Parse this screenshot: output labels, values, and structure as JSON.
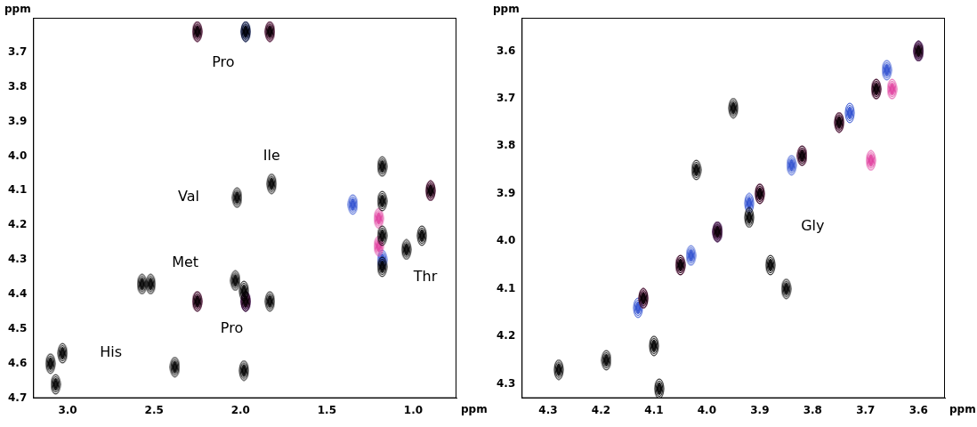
{
  "chart_data": [
    {
      "type": "scatter",
      "xlabel": "ppm",
      "ylabel": "ppm",
      "xlim": [
        3.2,
        0.75
      ],
      "ylim": [
        4.7,
        3.6
      ],
      "xticks": [
        {
          "value": 3,
          "label": "3.0"
        },
        2.5,
        {
          "value": 2,
          "label": "2.0"
        },
        1.5,
        {
          "value": 1,
          "label": "1.0"
        }
      ],
      "yticks": [
        3.7,
        3.8,
        3.9,
        {
          "value": 4,
          "label": "4.0"
        },
        4.1,
        4.2,
        4.3,
        4.4,
        4.5,
        4.6,
        4.7
      ],
      "grid": false,
      "series": [
        {
          "color": "#000000",
          "marker": "ellipse",
          "x": [
            2.25,
            1.97,
            1.83,
            1.82,
            2.02,
            0.9,
            1.18,
            1.18,
            1.18,
            1.18,
            1.04,
            0.95,
            2.57,
            2.52,
            2.03,
            1.98,
            2.25,
            1.97,
            1.83,
            3.1,
            3.03,
            3.07,
            2.38,
            1.98
          ],
          "y": [
            3.64,
            3.64,
            3.64,
            4.08,
            4.12,
            4.1,
            4.03,
            4.13,
            4.23,
            4.32,
            4.27,
            4.23,
            4.37,
            4.37,
            4.36,
            4.39,
            4.42,
            4.42,
            4.42,
            4.6,
            4.57,
            4.66,
            4.61,
            4.62
          ]
        },
        {
          "color": "#e0409f",
          "marker": "ellipse",
          "x": [
            2.25,
            1.83,
            0.9,
            1.2,
            1.2,
            2.25,
            1.97
          ],
          "y": [
            3.64,
            3.64,
            4.1,
            4.18,
            4.26,
            4.42,
            4.42
          ]
        },
        {
          "color": "#3050d0",
          "marker": "ellipse",
          "x": [
            1.97,
            1.35,
            1.18,
            1.97
          ],
          "y": [
            3.64,
            4.14,
            4.3,
            4.42
          ]
        }
      ],
      "annotations": [
        {
          "text": "Pro",
          "x": 2.1,
          "y": 3.73
        },
        {
          "text": "Ile",
          "x": 1.82,
          "y": 4.0
        },
        {
          "text": "Val",
          "x": 2.3,
          "y": 4.12
        },
        {
          "text": "Met",
          "x": 2.32,
          "y": 4.31
        },
        {
          "text": "Pro",
          "x": 2.05,
          "y": 4.5
        },
        {
          "text": "His",
          "x": 2.75,
          "y": 4.57
        },
        {
          "text": "Thr",
          "x": 0.93,
          "y": 4.35
        }
      ]
    },
    {
      "type": "scatter",
      "xlabel": "ppm",
      "ylabel": "ppm",
      "xlim": [
        4.35,
        3.55
      ],
      "ylim": [
        4.33,
        3.53
      ],
      "xticks": [
        4.3,
        4.2,
        4.1,
        {
          "value": 4,
          "label": "4.0"
        },
        3.9,
        3.8,
        3.7,
        3.6
      ],
      "yticks": [
        3.6,
        3.7,
        3.8,
        3.9,
        {
          "value": 4,
          "label": "4.0"
        },
        4.1,
        4.2,
        4.3
      ],
      "grid": false,
      "series": [
        {
          "color": "#000000",
          "marker": "ellipse",
          "x": [
            4.28,
            4.19,
            4.1,
            4.09,
            4.02,
            3.95,
            3.92,
            3.88,
            3.85,
            4.12,
            4.05,
            3.98,
            3.9,
            3.82,
            3.75,
            3.68,
            3.6
          ],
          "y": [
            4.27,
            4.25,
            4.22,
            4.31,
            3.85,
            3.72,
            3.95,
            4.05,
            4.1,
            4.12,
            4.05,
            3.98,
            3.9,
            3.82,
            3.75,
            3.68,
            3.6
          ]
        },
        {
          "color": "#e0409f",
          "marker": "ellipse",
          "x": [
            4.12,
            4.05,
            3.98,
            3.9,
            3.82,
            3.75,
            3.68,
            3.6,
            3.65,
            3.69
          ],
          "y": [
            4.12,
            4.05,
            3.98,
            3.9,
            3.82,
            3.75,
            3.68,
            3.6,
            3.68,
            3.83
          ]
        },
        {
          "color": "#3050d0",
          "marker": "ellipse",
          "x": [
            4.13,
            4.03,
            3.98,
            3.92,
            3.84,
            3.73,
            3.66,
            3.6
          ],
          "y": [
            4.14,
            4.03,
            3.98,
            3.92,
            3.84,
            3.73,
            3.64,
            3.6
          ]
        }
      ],
      "annotations": [
        {
          "text": "Gly",
          "x": 3.8,
          "y": 3.97
        }
      ]
    }
  ]
}
